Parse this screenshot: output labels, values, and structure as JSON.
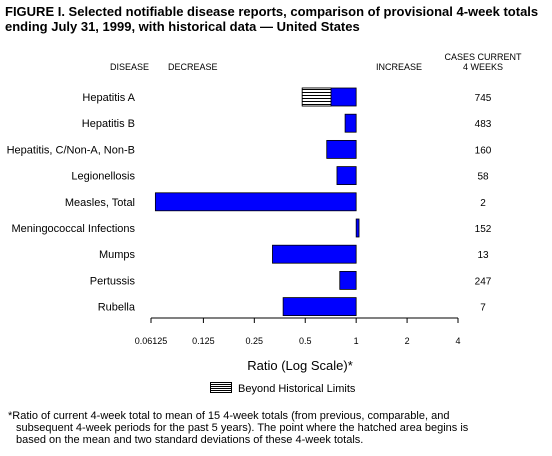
{
  "title": {
    "line1": "FIGURE I. Selected notifiable disease reports, comparison of provisional 4-week totals",
    "line2": "ending July 31, 1999, with historical data — United States"
  },
  "headers": {
    "disease": "DISEASE",
    "decrease": "DECREASE",
    "increase": "INCREASE",
    "cases_line1": "CASES CURRENT",
    "cases_line2": "4 WEEKS"
  },
  "legend": {
    "label": "Beyond Historical Limits"
  },
  "footnote": {
    "line1": "*Ratio of current 4-week total to mean of 15 4-week totals (from previous, comparable, and",
    "line2": "subsequent 4-week periods for the past 5 years). The point where the hatched area begins is",
    "line3": "based on the mean and two standard deviations of these 4-week totals."
  },
  "chart_data": {
    "type": "bar",
    "orientation": "horizontal",
    "scale": "log2",
    "xlabel": "Ratio (Log Scale)*",
    "xlim": [
      0.06125,
      4
    ],
    "xticks": [
      0.06125,
      0.125,
      0.25,
      0.5,
      1,
      2,
      4
    ],
    "xtick_labels": [
      "0.06125",
      "0.125",
      "0.25",
      "0.5",
      "1",
      "2",
      "4"
    ],
    "baseline": 1,
    "bar_color": "#0000ff",
    "hatch_color": "#000000",
    "categories": [
      "Hepatitis A",
      "Hepatitis B",
      "Hepatitis, C/Non-A, Non-B",
      "Legionellosis",
      "Measles, Total",
      "Meningococcal Infections",
      "Mumps",
      "Pertussis",
      "Rubella"
    ],
    "values": [
      0.48,
      0.86,
      0.67,
      0.77,
      0.065,
      1.04,
      0.32,
      0.8,
      0.37
    ],
    "beyond_limits_start": [
      0.71,
      null,
      null,
      null,
      null,
      null,
      null,
      null,
      null
    ],
    "cases_current_4_weeks": [
      "745",
      "483",
      "160",
      "58",
      "2",
      "152",
      "13",
      "247",
      "7"
    ]
  }
}
